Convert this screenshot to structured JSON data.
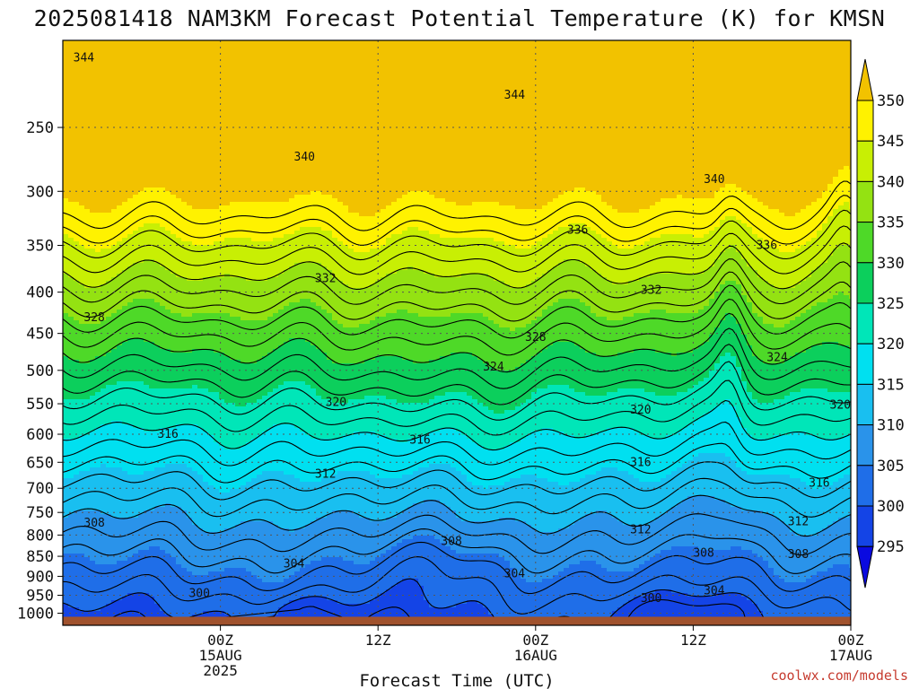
{
  "title": "2025081418 NAM3KM Forecast Potential Temperature (K) for KMSN",
  "credit": "coolwx.com/models",
  "chart_data": {
    "type": "heatmap",
    "title": "2025081418 NAM3KM Forecast Potential Temperature (K) for KMSN",
    "xlabel": "Forecast Time (UTC)",
    "ylabel": "",
    "y_scale": "log",
    "y_inverted": true,
    "xlim_hours": [
      -15,
      60
    ],
    "ylim_hpa": [
      1035,
      195
    ],
    "y_ticks": [
      250,
      300,
      350,
      400,
      450,
      500,
      550,
      600,
      650,
      700,
      750,
      800,
      850,
      900,
      950,
      1000
    ],
    "x_ticks": [
      {
        "hour": 0,
        "lines": [
          "00Z",
          "15AUG",
          "2025"
        ]
      },
      {
        "hour": 15,
        "lines": [
          "12Z"
        ]
      },
      {
        "hour": 30,
        "lines": [
          "00Z",
          "16AUG"
        ]
      },
      {
        "hour": 45,
        "lines": [
          "12Z"
        ]
      },
      {
        "hour": 60,
        "lines": [
          "00Z",
          "17AUG"
        ]
      }
    ],
    "grid": true,
    "colorbar": {
      "levels": [
        295,
        300,
        305,
        310,
        315,
        320,
        325,
        330,
        335,
        340,
        345,
        350
      ],
      "colors": [
        "#0a0ae0",
        "#1444e6",
        "#1f6ee8",
        "#2a93ea",
        "#19bff0",
        "#00e0f0",
        "#00e6b8",
        "#0ccf5c",
        "#4ed928",
        "#94e212",
        "#c8ef04",
        "#fff200",
        "#f2c200"
      ],
      "extend": "both"
    },
    "ground_color": "#a0522d",
    "ground_top_hpa": 1010,
    "contour_interval": 2,
    "contour_labels": [
      {
        "hour": -13,
        "hpa": 205,
        "value": "344"
      },
      {
        "hour": 28,
        "hpa": 228,
        "value": "344"
      },
      {
        "hour": 8,
        "hpa": 272,
        "value": "340"
      },
      {
        "hour": 47,
        "hpa": 290,
        "value": "340"
      },
      {
        "hour": 34,
        "hpa": 335,
        "value": "336"
      },
      {
        "hour": 52,
        "hpa": 350,
        "value": "336"
      },
      {
        "hour": 10,
        "hpa": 385,
        "value": "332"
      },
      {
        "hour": 41,
        "hpa": 398,
        "value": "332"
      },
      {
        "hour": -12,
        "hpa": 430,
        "value": "328"
      },
      {
        "hour": 30,
        "hpa": 455,
        "value": "328"
      },
      {
        "hour": 26,
        "hpa": 495,
        "value": "324"
      },
      {
        "hour": 53,
        "hpa": 482,
        "value": "324"
      },
      {
        "hour": 11,
        "hpa": 548,
        "value": "320"
      },
      {
        "hour": 40,
        "hpa": 560,
        "value": "320"
      },
      {
        "hour": 59,
        "hpa": 552,
        "value": "320"
      },
      {
        "hour": -5,
        "hpa": 600,
        "value": "316"
      },
      {
        "hour": 19,
        "hpa": 610,
        "value": "316"
      },
      {
        "hour": 40,
        "hpa": 650,
        "value": "316"
      },
      {
        "hour": 57,
        "hpa": 690,
        "value": "316"
      },
      {
        "hour": 10,
        "hpa": 672,
        "value": "312"
      },
      {
        "hour": 40,
        "hpa": 788,
        "value": "312"
      },
      {
        "hour": 55,
        "hpa": 770,
        "value": "312"
      },
      {
        "hour": -12,
        "hpa": 773,
        "value": "308"
      },
      {
        "hour": 22,
        "hpa": 815,
        "value": "308"
      },
      {
        "hour": 46,
        "hpa": 842,
        "value": "308"
      },
      {
        "hour": 55,
        "hpa": 845,
        "value": "308"
      },
      {
        "hour": 7,
        "hpa": 868,
        "value": "304"
      },
      {
        "hour": 28,
        "hpa": 893,
        "value": "304"
      },
      {
        "hour": 47,
        "hpa": 938,
        "value": "304"
      },
      {
        "hour": -2,
        "hpa": 945,
        "value": "300"
      },
      {
        "hour": 41,
        "hpa": 958,
        "value": "300"
      }
    ]
  }
}
